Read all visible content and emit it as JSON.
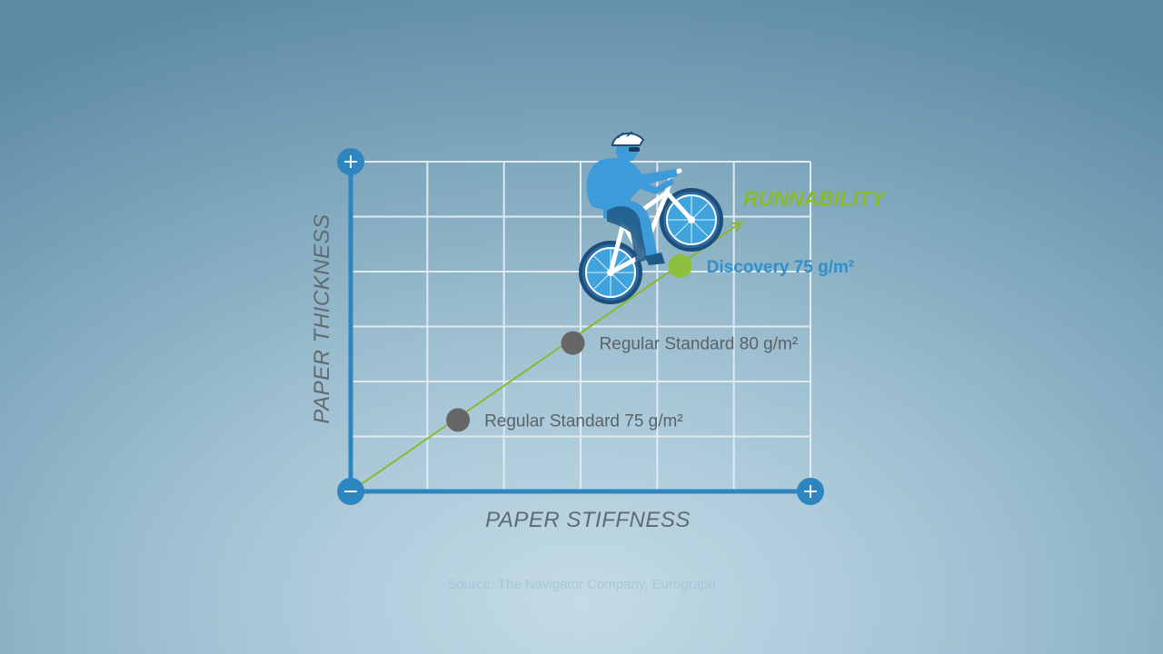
{
  "chart_data": {
    "type": "scatter",
    "xlabel": "PAPER STIFFNESS",
    "ylabel": "PAPER THICKNESS",
    "xlim": [
      0,
      6
    ],
    "ylim": [
      0,
      6
    ],
    "grid": true,
    "axis_end_symbols": {
      "x_max": "+",
      "y_max": "+",
      "origin": "−"
    },
    "trend": {
      "label": "RUNNABILITY",
      "from": [
        0,
        0
      ],
      "to": [
        5.1,
        4.9
      ]
    },
    "points": [
      {
        "label": "Regular Standard 75 g/m²",
        "x": 1.4,
        "y": 1.3,
        "color": "#666666"
      },
      {
        "label": "Regular Standard 80 g/m²",
        "x": 2.9,
        "y": 2.7,
        "color": "#666666"
      },
      {
        "label": "Discovery 75 g/m²",
        "x": 4.3,
        "y": 4.1,
        "color": "#8dc03f",
        "label_color": "#2f8fcc"
      }
    ],
    "annotations": [
      "Source: The Navigator Company, Eurograph"
    ],
    "illustration": "cyclist-icon"
  },
  "colors": {
    "axis": "#2e86c1",
    "trend": "#8ab82e",
    "highlight_point": "#8dc03f",
    "standard_point": "#666666",
    "highlight_label": "#2f8fcc"
  }
}
